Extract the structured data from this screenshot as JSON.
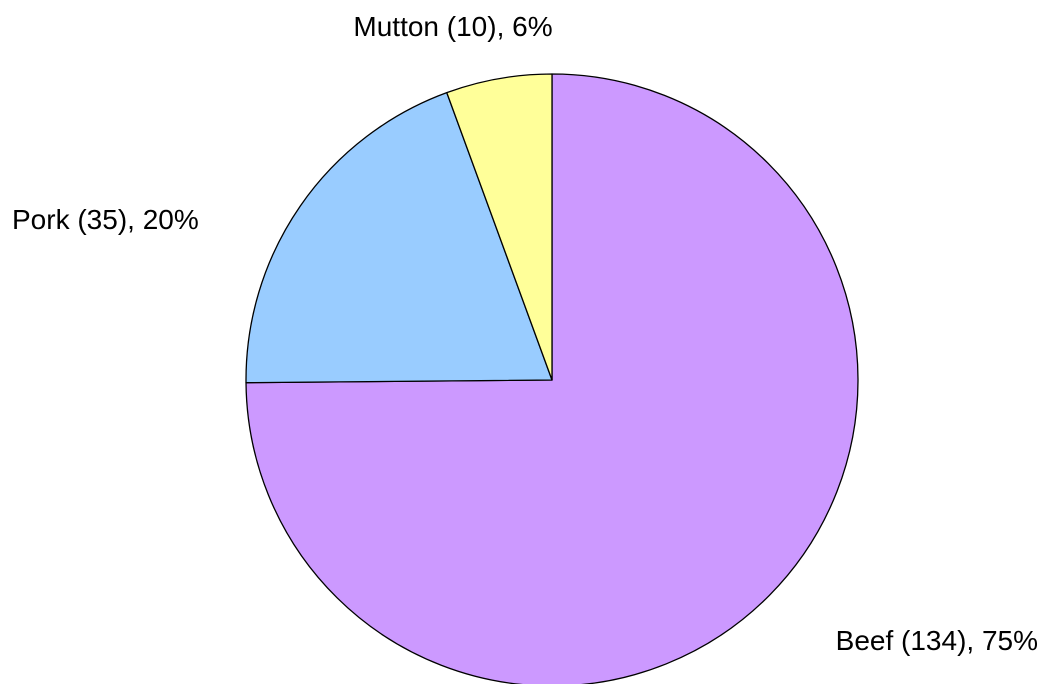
{
  "chart_data": {
    "type": "pie",
    "title": "",
    "start_angle_deg": 0,
    "direction": "clockwise",
    "slices": [
      {
        "category": "Beef",
        "value": 134,
        "percent": 75,
        "label": "Beef (134), 75%",
        "color": "#CC99FF"
      },
      {
        "category": "Pork",
        "value": 35,
        "percent": 20,
        "label": "Pork (35), 20%",
        "color": "#99CCFF"
      },
      {
        "category": "Mutton",
        "value": 10,
        "percent": 6,
        "label": "Mutton (10), 6%",
        "color": "#FFFF99"
      }
    ]
  }
}
